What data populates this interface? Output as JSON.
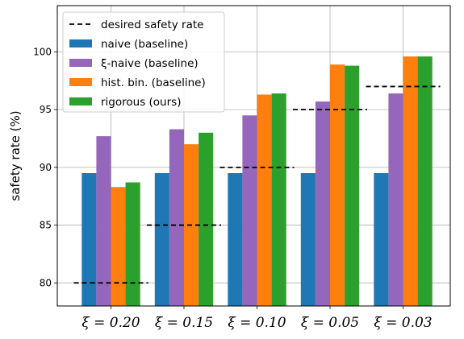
{
  "chart_data": {
    "type": "bar",
    "title": "",
    "xlabel": "",
    "ylabel": "safety rate (%)",
    "ylim": [
      78,
      104
    ],
    "yticks": [
      80,
      85,
      90,
      95,
      100
    ],
    "categories": [
      "ξ = 0.20",
      "ξ = 0.15",
      "ξ = 0.10",
      "ξ = 0.05",
      "ξ = 0.03"
    ],
    "series": [
      {
        "name": "naive (baseline)",
        "color": "#1f77b4",
        "values": [
          89.5,
          89.5,
          89.5,
          89.5,
          89.5
        ]
      },
      {
        "name": "ξ-naive (baseline)",
        "color": "#9467bd",
        "values": [
          92.7,
          93.3,
          94.5,
          95.7,
          96.4
        ]
      },
      {
        "name": "hist. bin. (baseline)",
        "color": "#ff7f0e",
        "values": [
          88.3,
          92.0,
          96.3,
          98.9,
          99.6
        ]
      },
      {
        "name": "rigorous (ours)",
        "color": "#2ca02c",
        "values": [
          88.7,
          93.0,
          96.4,
          98.8,
          99.6
        ]
      }
    ],
    "reference_line": {
      "name": "desired safety rate",
      "style": "dashed",
      "color": "#000000",
      "values": [
        80,
        85,
        90,
        95,
        97
      ]
    },
    "grid": true,
    "legend_position": "top-left"
  }
}
